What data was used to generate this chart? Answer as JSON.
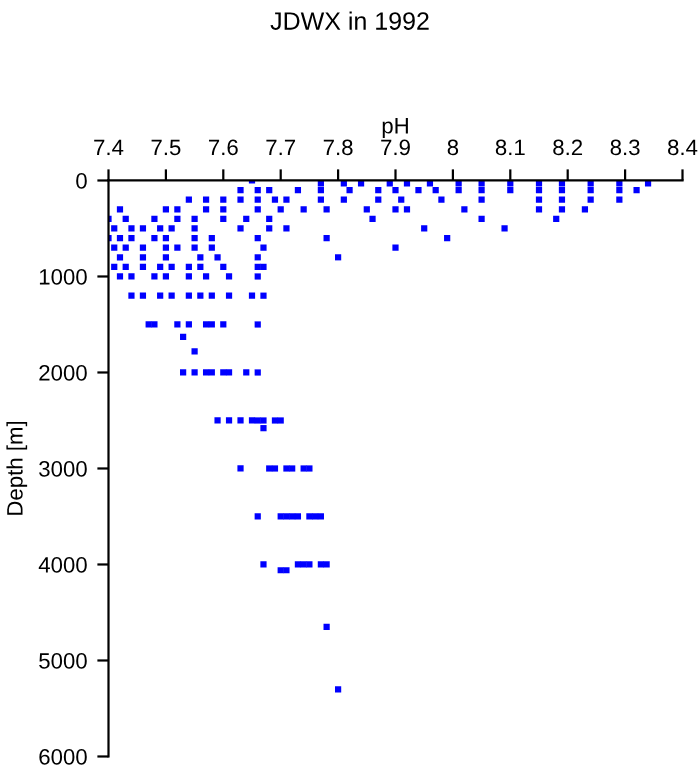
{
  "chart_data": {
    "type": "scatter",
    "title": "JDWX in 1992",
    "xlabel": "pH",
    "ylabel": "Depth [m]",
    "xlim": [
      7.4,
      8.4
    ],
    "xticks": [
      7.4,
      7.5,
      7.6,
      7.7,
      7.8,
      7.9,
      8,
      8.1,
      8.2,
      8.3,
      8.4
    ],
    "ylim": [
      6000,
      0
    ],
    "yticks": [
      0,
      1000,
      2000,
      3000,
      4000,
      5000,
      6000
    ],
    "grid": false,
    "legend": false,
    "marker": "square",
    "series": [
      {
        "color": "#0000ff",
        "x": [
          7.65,
          7.77,
          7.81,
          7.84,
          7.89,
          7.92,
          7.96,
          8.01,
          8.05,
          8.1,
          8.15,
          8.19,
          8.24,
          8.29,
          8.34,
          7.63,
          7.66,
          7.68,
          7.73,
          7.77,
          7.82,
          7.87,
          7.9,
          7.94,
          7.97,
          8.01,
          8.05,
          8.1,
          8.15,
          8.19,
          8.24,
          8.29,
          8.32,
          7.54,
          7.57,
          7.6,
          7.63,
          7.66,
          7.69,
          7.71,
          7.77,
          7.81,
          7.87,
          7.91,
          7.98,
          8.05,
          8.15,
          8.19,
          8.24,
          8.29,
          7.42,
          7.5,
          7.52,
          7.57,
          7.6,
          7.66,
          7.7,
          7.74,
          7.78,
          7.85,
          7.9,
          7.92,
          8.02,
          8.15,
          8.19,
          8.23,
          7.4,
          7.43,
          7.48,
          7.52,
          7.55,
          7.6,
          7.64,
          7.68,
          7.86,
          8.05,
          8.18,
          7.41,
          7.44,
          7.46,
          7.49,
          7.51,
          7.55,
          7.63,
          7.68,
          7.71,
          7.95,
          8.09,
          7.4,
          7.42,
          7.44,
          7.48,
          7.5,
          7.55,
          7.58,
          7.66,
          7.78,
          7.99,
          7.41,
          7.43,
          7.46,
          7.5,
          7.52,
          7.55,
          7.58,
          7.67,
          7.9,
          7.42,
          7.46,
          7.5,
          7.56,
          7.59,
          7.66,
          7.8,
          7.41,
          7.43,
          7.46,
          7.49,
          7.51,
          7.54,
          7.56,
          7.6,
          7.66,
          7.67,
          7.42,
          7.44,
          7.48,
          7.5,
          7.54,
          7.57,
          7.61,
          7.66,
          7.44,
          7.46,
          7.49,
          7.51,
          7.54,
          7.56,
          7.58,
          7.61,
          7.65,
          7.67,
          7.47,
          7.48,
          7.52,
          7.54,
          7.57,
          7.58,
          7.6,
          7.66,
          7.53,
          7.55,
          7.53,
          7.55,
          7.57,
          7.58,
          7.6,
          7.61,
          7.64,
          7.66,
          7.59,
          7.61,
          7.63,
          7.65,
          7.66,
          7.67,
          7.69,
          7.7,
          7.67,
          7.63,
          7.68,
          7.69,
          7.71,
          7.72,
          7.74,
          7.75,
          7.66,
          7.7,
          7.71,
          7.72,
          7.73,
          7.75,
          7.76,
          7.77,
          7.67,
          7.73,
          7.74,
          7.75,
          7.77,
          7.78,
          7.7,
          7.71,
          7.78,
          7.8
        ],
        "values": [
          0,
          30,
          30,
          30,
          30,
          30,
          30,
          30,
          30,
          30,
          30,
          30,
          30,
          30,
          30,
          100,
          100,
          100,
          100,
          100,
          100,
          100,
          100,
          100,
          100,
          100,
          100,
          100,
          100,
          100,
          100,
          100,
          100,
          200,
          200,
          200,
          200,
          200,
          200,
          200,
          200,
          200,
          200,
          200,
          200,
          200,
          200,
          200,
          200,
          200,
          300,
          300,
          300,
          300,
          300,
          300,
          300,
          300,
          300,
          300,
          300,
          300,
          300,
          300,
          300,
          300,
          400,
          400,
          400,
          400,
          400,
          400,
          400,
          400,
          400,
          400,
          400,
          500,
          500,
          500,
          500,
          500,
          500,
          500,
          500,
          500,
          500,
          500,
          600,
          600,
          600,
          600,
          600,
          600,
          600,
          600,
          600,
          600,
          700,
          700,
          700,
          700,
          700,
          700,
          700,
          700,
          700,
          800,
          800,
          800,
          800,
          800,
          800,
          800,
          900,
          900,
          900,
          900,
          900,
          900,
          900,
          900,
          900,
          900,
          1000,
          1000,
          1000,
          1000,
          1000,
          1000,
          1000,
          1000,
          1200,
          1200,
          1200,
          1200,
          1200,
          1200,
          1200,
          1200,
          1200,
          1200,
          1500,
          1500,
          1500,
          1500,
          1500,
          1500,
          1500,
          1500,
          1630,
          1780,
          2000,
          2000,
          2000,
          2000,
          2000,
          2000,
          2000,
          2000,
          2500,
          2500,
          2500,
          2500,
          2500,
          2500,
          2500,
          2500,
          2580,
          3000,
          3000,
          3000,
          3000,
          3000,
          3000,
          3000,
          3500,
          3500,
          3500,
          3500,
          3500,
          3500,
          3500,
          3500,
          4000,
          4000,
          4000,
          4000,
          4000,
          4000,
          4060,
          4060,
          4650,
          5300
        ]
      }
    ]
  }
}
